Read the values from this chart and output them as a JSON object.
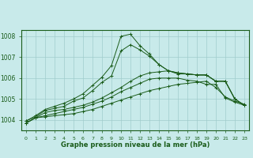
{
  "title": "Graphe pression niveau de la mer (hPa)",
  "xlabel": "Graphe pression niveau de la mer (hPa)",
  "background_color": "#c8eaea",
  "grid_color": "#a0cccc",
  "line_color": "#1a5c1a",
  "ylim": [
    1003.5,
    1008.3
  ],
  "yticks": [
    1004,
    1005,
    1006,
    1007,
    1008
  ],
  "xlim": [
    -0.5,
    23.5
  ],
  "series": [
    [
      1003.85,
      1004.1,
      1004.15,
      1004.2,
      1004.25,
      1004.3,
      1004.4,
      1004.5,
      1004.65,
      1004.8,
      1004.95,
      1005.1,
      1005.25,
      1005.4,
      1005.5,
      1005.6,
      1005.7,
      1005.75,
      1005.8,
      1005.85,
      1005.55,
      1005.1,
      1004.9,
      1004.75
    ],
    [
      1003.85,
      1004.1,
      1004.2,
      1004.3,
      1004.4,
      1004.5,
      1004.6,
      1004.75,
      1004.9,
      1005.1,
      1005.35,
      1005.55,
      1005.75,
      1005.95,
      1006.0,
      1006.0,
      1006.0,
      1005.9,
      1005.85,
      1005.7,
      1005.7,
      1005.05,
      1004.85,
      1004.7
    ],
    [
      1003.85,
      1004.1,
      1004.35,
      1004.45,
      1004.5,
      1004.6,
      1004.7,
      1004.85,
      1005.05,
      1005.3,
      1005.55,
      1005.85,
      1006.1,
      1006.25,
      1006.3,
      1006.35,
      1006.2,
      1006.2,
      1006.15,
      1006.15,
      1005.85,
      1005.85,
      1005.0,
      1004.7
    ],
    [
      1003.95,
      1004.15,
      1004.45,
      1004.55,
      1004.65,
      1004.9,
      1005.05,
      1005.4,
      1005.8,
      1006.1,
      1007.3,
      1007.6,
      1007.35,
      1007.05,
      1006.65,
      1006.35,
      1006.25,
      1006.2,
      1006.15,
      1006.15,
      1005.85,
      1005.85,
      1005.0,
      1004.7
    ],
    [
      1003.95,
      1004.2,
      1004.5,
      1004.65,
      1004.8,
      1005.0,
      1005.25,
      1005.65,
      1006.05,
      1006.6,
      1008.0,
      1008.1,
      1007.55,
      1007.15,
      1006.65,
      1006.35,
      1006.25,
      1006.2,
      1006.15,
      1006.15,
      1005.85,
      1005.85,
      1005.0,
      1004.7
    ]
  ]
}
